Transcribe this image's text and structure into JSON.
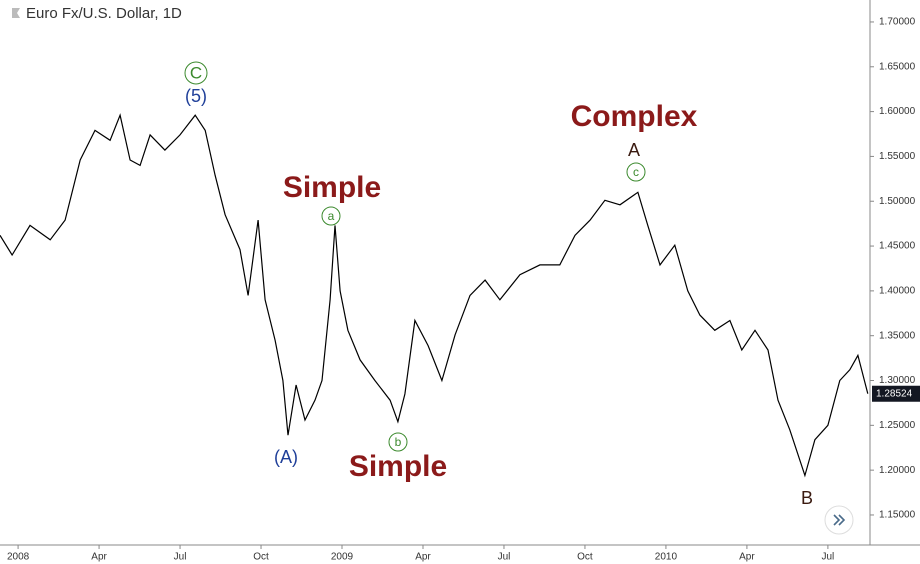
{
  "chart_data": {
    "type": "line",
    "title": "Euro Fx/U.S. Dollar, 1D",
    "color": "#000000",
    "x": [
      -0.67,
      -0.22,
      0.44,
      1.19,
      1.74,
      2.3,
      2.85,
      3.41,
      3.78,
      4.15,
      4.52,
      4.89,
      5.44,
      6.0,
      6.56,
      6.93,
      7.3,
      7.67,
      8.22,
      8.52,
      8.89,
      9.15,
      9.52,
      9.81,
      10.0,
      10.3,
      10.63,
      11.0,
      11.26,
      11.56,
      11.74,
      11.93,
      12.22,
      12.67,
      13.22,
      13.78,
      14.07,
      14.33,
      14.7,
      15.19,
      15.7,
      16.19,
      16.74,
      17.3,
      17.85,
      18.59,
      19.33,
      20.07,
      20.63,
      21.19,
      21.74,
      22.3,
      22.96,
      23.33,
      23.78,
      24.33,
      24.81,
      25.26,
      25.81,
      26.37,
      26.81,
      27.3,
      27.78,
      28.15,
      28.59,
      29.15,
      29.52,
      30.0,
      30.44,
      30.81,
      31.11,
      31.48
    ],
    "values": [
      1.462,
      1.44,
      1.473,
      1.457,
      1.479,
      1.546,
      1.579,
      1.568,
      1.596,
      1.546,
      1.54,
      1.574,
      1.557,
      1.574,
      1.596,
      1.579,
      1.529,
      1.485,
      1.446,
      1.395,
      1.479,
      1.39,
      1.345,
      1.3,
      1.239,
      1.295,
      1.256,
      1.278,
      1.3,
      1.39,
      1.473,
      1.4,
      1.356,
      1.323,
      1.3,
      1.278,
      1.254,
      1.285,
      1.367,
      1.339,
      1.3,
      1.351,
      1.395,
      1.412,
      1.39,
      1.418,
      1.429,
      1.429,
      1.462,
      1.479,
      1.501,
      1.496,
      1.51,
      1.473,
      1.429,
      1.451,
      1.4,
      1.373,
      1.356,
      1.367,
      1.334,
      1.356,
      1.334,
      1.278,
      1.245,
      1.194,
      1.234,
      1.25,
      1.3,
      1.312,
      1.328,
      1.28524
    ],
    "xlim": [
      -0.67,
      31.56
    ],
    "xticks": [
      {
        "value": 0,
        "label": "2008"
      },
      {
        "value": 3,
        "label": "Apr"
      },
      {
        "value": 6,
        "label": "Jul"
      },
      {
        "value": 9,
        "label": "Oct"
      },
      {
        "value": 12,
        "label": "2009"
      },
      {
        "value": 15,
        "label": "Apr"
      },
      {
        "value": 18,
        "label": "Jul"
      },
      {
        "value": 21,
        "label": "Oct"
      },
      {
        "value": 24,
        "label": "2010"
      },
      {
        "value": 27,
        "label": "Apr"
      },
      {
        "value": 30,
        "label": "Jul"
      }
    ],
    "ylim": [
      1.1165,
      1.7245
    ],
    "yticks": [
      {
        "value": 1.15,
        "label": "1.15000"
      },
      {
        "value": 1.2,
        "label": "1.20000"
      },
      {
        "value": 1.25,
        "label": "1.25000"
      },
      {
        "value": 1.3,
        "label": "1.30000"
      },
      {
        "value": 1.35,
        "label": "1.35000"
      },
      {
        "value": 1.4,
        "label": "1.40000"
      },
      {
        "value": 1.45,
        "label": "1.45000"
      },
      {
        "value": 1.5,
        "label": "1.50000"
      },
      {
        "value": 1.55,
        "label": "1.55000"
      },
      {
        "value": 1.6,
        "label": "1.60000"
      },
      {
        "value": 1.65,
        "label": "1.65000"
      },
      {
        "value": 1.7,
        "label": "1.70000"
      }
    ],
    "last_price": 1.28524,
    "annotations": [
      "C",
      "(5)",
      "Simple",
      "a",
      "(A)",
      "b",
      "Simple",
      "Complex",
      "A",
      "c",
      "B"
    ]
  }
}
